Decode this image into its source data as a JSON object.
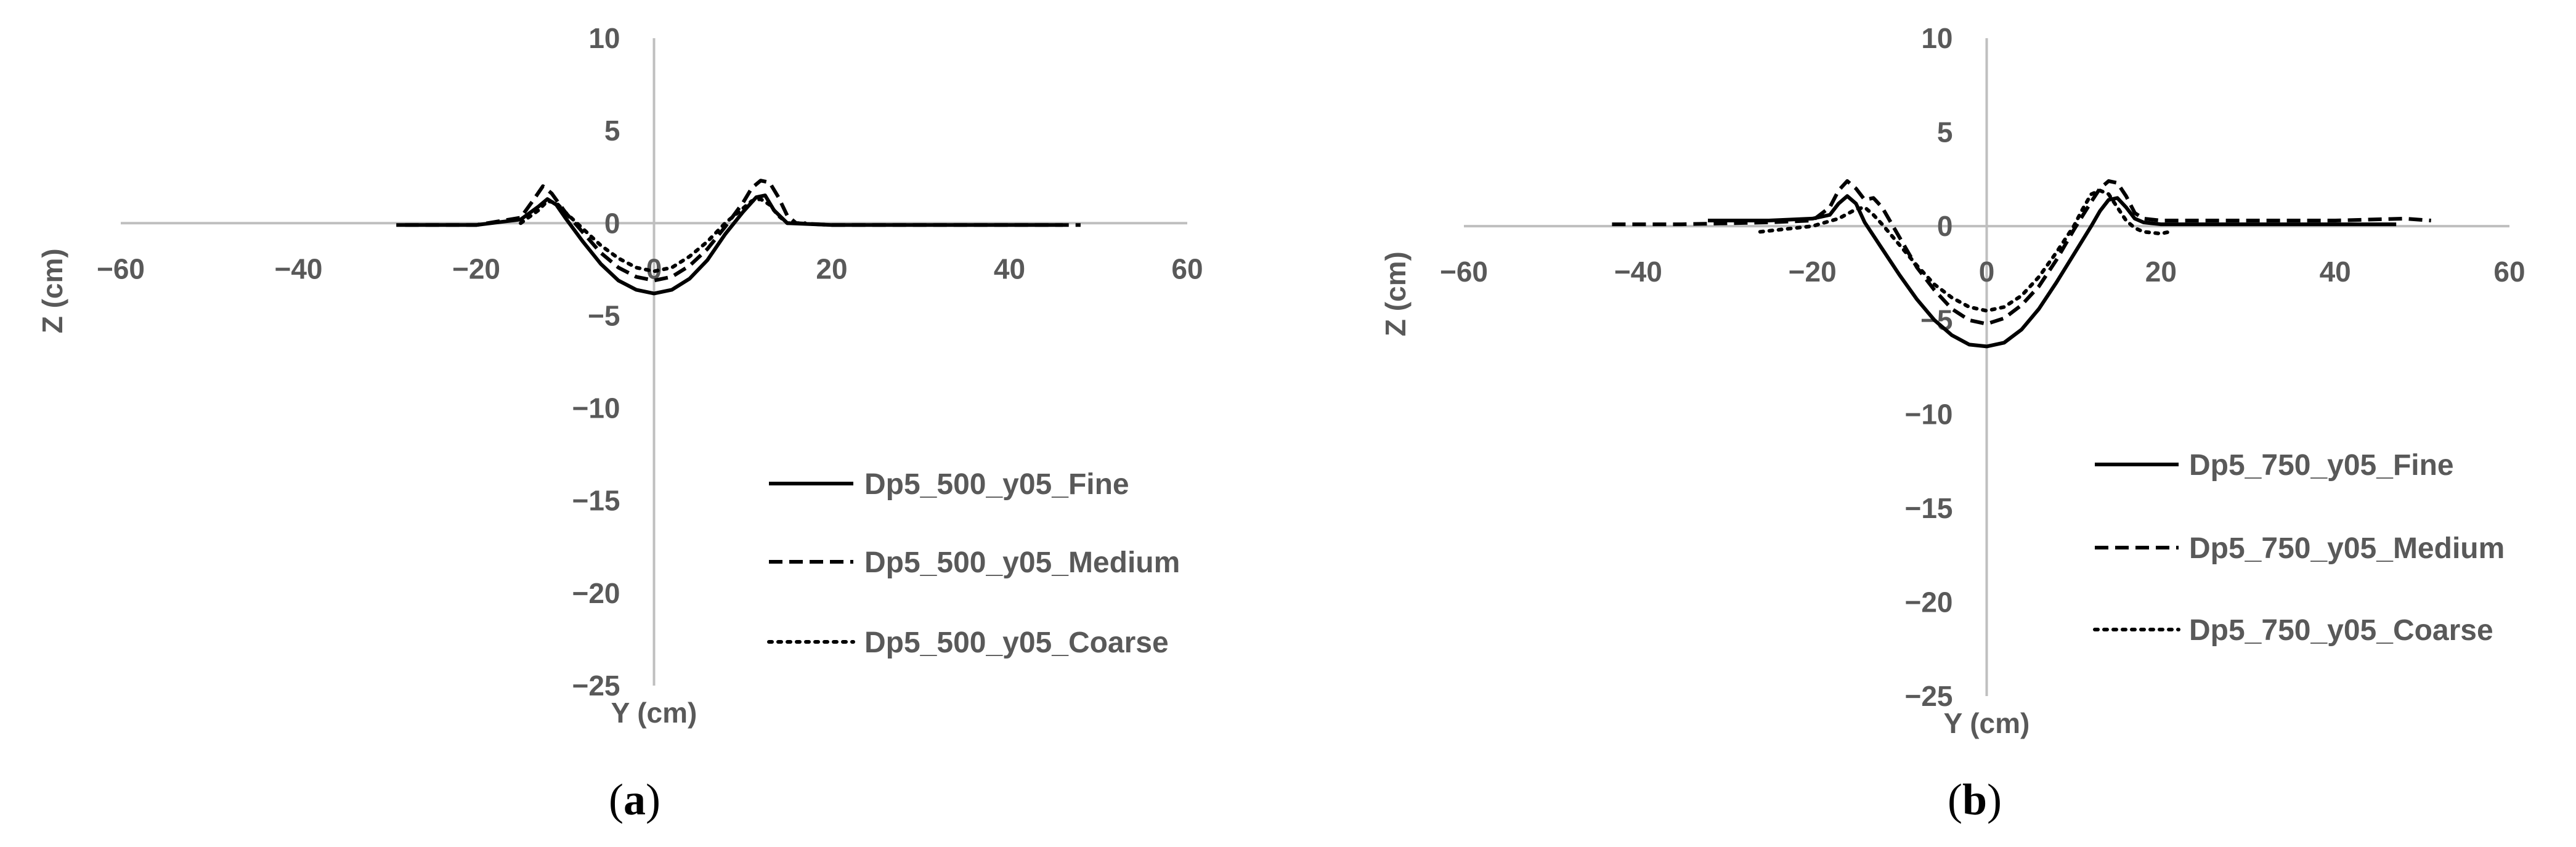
{
  "panels": [
    {
      "label_open": "(",
      "label_letter": "a",
      "label_close": ")"
    },
    {
      "label_open": "(",
      "label_letter": "b",
      "label_close": ")"
    }
  ],
  "chart_data": [
    {
      "type": "line",
      "title": "",
      "xlabel": "Y (cm)",
      "ylabel": "Z (cm)",
      "xlim": [
        -60,
        60
      ],
      "ylim": [
        -25,
        10
      ],
      "xticks": [
        -60,
        -40,
        -20,
        0,
        20,
        40,
        60
      ],
      "yticks": [
        10,
        5,
        0,
        -5,
        -10,
        -15,
        -20,
        -25
      ],
      "grid": false,
      "legend_position": "right",
      "axis_color": "#bfbfbf",
      "series": [
        {
          "name": "Dp5_500_y05_Fine",
          "style": "solid",
          "color": "#000000",
          "x": [
            -29,
            -20,
            -15,
            -13,
            -12,
            -11,
            -10,
            -8,
            -6,
            -4,
            -2,
            0,
            2,
            4,
            6,
            8,
            10,
            11.5,
            12.5,
            13.5,
            15,
            20,
            30,
            40,
            46
          ],
          "y": [
            -0.1,
            -0.1,
            0.2,
            0.9,
            1.3,
            1.0,
            0.3,
            -1.0,
            -2.2,
            -3.1,
            -3.6,
            -3.8,
            -3.6,
            -3.0,
            -2.0,
            -0.6,
            0.6,
            1.4,
            1.5,
            0.7,
            0.0,
            -0.1,
            -0.1,
            -0.1,
            -0.1
          ]
        },
        {
          "name": "Dp5_500_y05_Medium",
          "style": "dash",
          "color": "#000000",
          "x": [
            -28,
            -20,
            -15,
            -13.5,
            -12.5,
            -11.5,
            -10,
            -8,
            -6,
            -4,
            -2,
            0,
            2,
            4,
            6,
            8,
            10,
            11,
            12,
            13,
            14,
            15,
            16,
            20,
            30,
            40,
            48
          ],
          "y": [
            -0.1,
            -0.1,
            0.3,
            1.3,
            2.0,
            1.6,
            0.6,
            -0.5,
            -1.6,
            -2.4,
            -2.9,
            -3.1,
            -2.9,
            -2.3,
            -1.4,
            -0.2,
            1.1,
            1.9,
            2.3,
            2.2,
            1.4,
            0.4,
            0.0,
            -0.1,
            -0.1,
            -0.1,
            -0.1
          ]
        },
        {
          "name": "Dp5_500_y05_Coarse",
          "style": "dot",
          "color": "#000000",
          "x": [
            -15,
            -13,
            -12,
            -11,
            -10,
            -8,
            -6,
            -4,
            -2,
            0,
            2,
            4,
            6,
            8,
            10,
            11,
            12,
            13,
            14,
            15,
            17
          ],
          "y": [
            0.0,
            0.7,
            1.2,
            1.1,
            0.6,
            -0.3,
            -1.2,
            -1.9,
            -2.4,
            -2.6,
            -2.4,
            -1.8,
            -1.0,
            0.0,
            0.8,
            1.2,
            1.3,
            1.0,
            0.4,
            0.0,
            0.0
          ]
        }
      ]
    },
    {
      "type": "line",
      "title": "",
      "xlabel": "Y (cm)",
      "ylabel": "Z (cm)",
      "xlim": [
        -60,
        60
      ],
      "ylim": [
        -25,
        10
      ],
      "xticks": [
        -60,
        -40,
        -20,
        0,
        20,
        40,
        60
      ],
      "yticks": [
        10,
        5,
        0,
        -5,
        -10,
        -15,
        -20,
        -25
      ],
      "grid": false,
      "legend_position": "right",
      "axis_color": "#bfbfbf",
      "series": [
        {
          "name": "Dp5_750_y05_Fine",
          "style": "solid",
          "color": "#000000",
          "x": [
            -32,
            -25,
            -20,
            -18,
            -17,
            -16,
            -15,
            -14,
            -12,
            -10,
            -8,
            -6,
            -4,
            -2,
            0,
            2,
            4,
            6,
            8,
            10,
            12,
            13,
            14,
            15,
            16,
            17,
            18,
            20,
            30,
            40,
            47
          ],
          "y": [
            0.3,
            0.3,
            0.4,
            0.6,
            1.2,
            1.6,
            1.2,
            0.2,
            -1.2,
            -2.6,
            -3.9,
            -5.0,
            -5.8,
            -6.3,
            -6.4,
            -6.2,
            -5.5,
            -4.4,
            -3.0,
            -1.5,
            0.0,
            0.8,
            1.4,
            1.5,
            1.0,
            0.4,
            0.2,
            0.1,
            0.1,
            0.1,
            0.1
          ]
        },
        {
          "name": "Dp5_750_y05_Medium",
          "style": "dash",
          "color": "#000000",
          "x": [
            -43,
            -35,
            -25,
            -20,
            -18,
            -17,
            -16,
            -15,
            -14,
            -13,
            -12,
            -10,
            -8,
            -6,
            -4,
            -2,
            0,
            2,
            4,
            6,
            8,
            10,
            12,
            13,
            14,
            15,
            16,
            17,
            18,
            20,
            30,
            40,
            48,
            51
          ],
          "y": [
            0.1,
            0.1,
            0.2,
            0.3,
            1.0,
            1.9,
            2.4,
            2.0,
            1.4,
            1.5,
            1.0,
            -0.6,
            -2.2,
            -3.4,
            -4.4,
            -5.0,
            -5.2,
            -4.9,
            -4.2,
            -3.2,
            -1.8,
            -0.2,
            1.3,
            2.0,
            2.4,
            2.3,
            1.6,
            0.7,
            0.4,
            0.3,
            0.3,
            0.3,
            0.4,
            0.3
          ]
        },
        {
          "name": "Dp5_750_y05_Coarse",
          "style": "dot",
          "color": "#000000",
          "x": [
            -26,
            -20,
            -17,
            -15,
            -14,
            -13,
            -12,
            -10,
            -8,
            -6,
            -4,
            -2,
            0,
            2,
            4,
            6,
            8,
            10,
            11,
            12,
            13,
            14,
            15,
            16,
            17,
            18,
            20,
            21
          ],
          "y": [
            -0.3,
            0.0,
            0.4,
            0.9,
            1.0,
            0.6,
            0.1,
            -1.0,
            -2.1,
            -3.1,
            -3.8,
            -4.3,
            -4.5,
            -4.3,
            -3.7,
            -2.7,
            -1.4,
            0.0,
            0.9,
            1.7,
            1.9,
            1.7,
            1.0,
            0.3,
            -0.1,
            -0.3,
            -0.4,
            -0.3
          ]
        }
      ]
    }
  ]
}
